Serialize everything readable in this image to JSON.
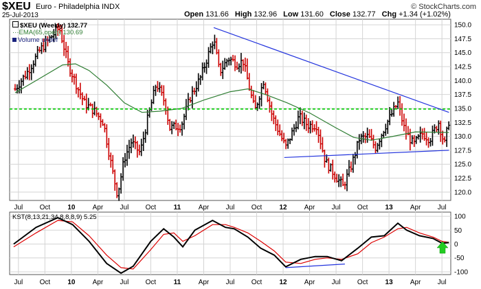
{
  "header": {
    "symbol": "$XEU",
    "name": "Euro - Philadelphia INDX",
    "date": "25-Jul-2013",
    "brand": "© StockCharts.com",
    "open_label": "Open",
    "open": "131.66",
    "high_label": "High",
    "high": "132.96",
    "low_label": "Low",
    "low": "131.60",
    "close_label": "Close",
    "close": "132.77",
    "chg_label": "Chg",
    "chg": "+1.34 (+1.02%)"
  },
  "legend": {
    "price": "$XEU (Weekly) 132.77",
    "ema": "EMA(65,open) 130.69",
    "volume": "Volume undef",
    "kst": "KST(8,13,21,34,8,8,8,9) 5.25"
  },
  "colors": {
    "bar_up": "#000000",
    "bar_down": "#cc0000",
    "ema": "#2e7d32",
    "support_line": "#00cc00",
    "trend_line": "#2233dd",
    "kst_line": "#000000",
    "kst_signal": "#dd0000",
    "arrow": "#22cc22",
    "grid": "#d4d4d4"
  },
  "chart_data": [
    {
      "type": "ohlc",
      "title": "$XEU (Weekly) 132.77",
      "x_ticks": [
        "Jul",
        "Oct",
        "10",
        "Apr",
        "Jul",
        "Oct",
        "11",
        "Apr",
        "Jul",
        "Oct",
        "12",
        "Apr",
        "Jul",
        "Oct",
        "13",
        "Apr",
        "Jul"
      ],
      "x_range": [
        "2009-06",
        "2013-08"
      ],
      "ylim": [
        118.5,
        151
      ],
      "y_ticks": [
        120.0,
        122.5,
        125.0,
        127.5,
        130.0,
        132.5,
        135.0,
        137.5,
        140.0,
        142.5,
        145.0,
        147.5,
        150.0
      ],
      "close_path": [
        [
          "2009-06-20",
          138.5
        ],
        [
          "2009-08-01",
          141.5
        ],
        [
          "2009-09-15",
          145.5
        ],
        [
          "2009-11-20",
          149.5
        ],
        [
          "2009-12-20",
          143.0
        ],
        [
          "2010-01-20",
          139.0
        ],
        [
          "2010-02-15",
          136.0
        ],
        [
          "2010-03-20",
          134.5
        ],
        [
          "2010-04-20",
          132.5
        ],
        [
          "2010-05-20",
          124.0
        ],
        [
          "2010-06-08",
          119.5
        ],
        [
          "2010-07-01",
          126.0
        ],
        [
          "2010-07-25",
          129.0
        ],
        [
          "2010-08-25",
          127.0
        ],
        [
          "2010-09-20",
          133.0
        ],
        [
          "2010-10-20",
          139.5
        ],
        [
          "2010-11-20",
          136.0
        ],
        [
          "2010-12-05",
          131.5
        ],
        [
          "2011-01-15",
          132.0
        ],
        [
          "2011-02-15",
          137.0
        ],
        [
          "2011-03-20",
          140.5
        ],
        [
          "2011-05-05",
          147.5
        ],
        [
          "2011-05-25",
          141.5
        ],
        [
          "2011-06-25",
          144.0
        ],
        [
          "2011-07-25",
          143.0
        ],
        [
          "2011-08-15",
          143.5
        ],
        [
          "2011-09-25",
          134.5
        ],
        [
          "2011-10-25",
          140.0
        ],
        [
          "2011-11-25",
          133.5
        ],
        [
          "2012-01-10",
          128.0
        ],
        [
          "2012-02-25",
          133.5
        ],
        [
          "2012-03-25",
          132.0
        ],
        [
          "2012-04-25",
          132.0
        ],
        [
          "2012-05-25",
          125.5
        ],
        [
          "2012-07-25",
          121.0
        ],
        [
          "2012-08-25",
          125.0
        ],
        [
          "2012-09-20",
          129.5
        ],
        [
          "2012-10-20",
          130.0
        ],
        [
          "2012-11-15",
          128.0
        ],
        [
          "2012-12-20",
          132.0
        ],
        [
          "2013-02-01",
          136.0
        ],
        [
          "2013-02-25",
          131.0
        ],
        [
          "2013-03-25",
          128.5
        ],
        [
          "2013-04-25",
          130.5
        ],
        [
          "2013-05-20",
          129.5
        ],
        [
          "2013-06-20",
          132.5
        ],
        [
          "2013-07-10",
          128.5
        ],
        [
          "2013-07-25",
          132.77
        ]
      ],
      "ema_path": [
        [
          "2009-06-20",
          137.8
        ],
        [
          "2009-09-01",
          140.0
        ],
        [
          "2009-12-01",
          142.8
        ],
        [
          "2010-01-15",
          143.0
        ],
        [
          "2010-03-01",
          141.8
        ],
        [
          "2010-05-01",
          139.2
        ],
        [
          "2010-07-01",
          136.0
        ],
        [
          "2010-09-01",
          134.3
        ],
        [
          "2010-11-01",
          134.5
        ],
        [
          "2011-01-15",
          135.0
        ],
        [
          "2011-04-01",
          136.5
        ],
        [
          "2011-07-01",
          138.0
        ],
        [
          "2011-09-01",
          138.5
        ],
        [
          "2011-11-01",
          137.5
        ],
        [
          "2012-01-15",
          136.0
        ],
        [
          "2012-04-01",
          134.2
        ],
        [
          "2012-07-01",
          131.5
        ],
        [
          "2012-09-01",
          129.8
        ],
        [
          "2012-11-01",
          129.3
        ],
        [
          "2013-01-15",
          130.0
        ],
        [
          "2013-04-01",
          130.8
        ],
        [
          "2013-07-25",
          130.69
        ]
      ],
      "horizontal_line": 134.9,
      "trend_lines": [
        [
          [
            "2011-05-05",
            149.5
          ],
          [
            "2013-07-25",
            134.3
          ]
        ],
        [
          [
            "2012-01-05",
            126.2
          ],
          [
            "2013-07-25",
            127.5
          ]
        ]
      ]
    },
    {
      "type": "line",
      "title": "KST(8,13,21,34,8,8,8,9) 5.25",
      "ylim": [
        -110,
        115
      ],
      "y_ticks": [
        -100,
        -50,
        0,
        50,
        100
      ],
      "x_ticks": [
        "Jul",
        "Oct",
        "10",
        "Apr",
        "Jul",
        "Oct",
        "11",
        "Apr",
        "Jul",
        "Oct",
        "12",
        "Apr",
        "Jul",
        "Oct",
        "13",
        "Apr",
        "Jul"
      ],
      "series": [
        {
          "name": "KST",
          "values": [
            [
              "2009-06-15",
              0
            ],
            [
              "2009-09-01",
              60
            ],
            [
              "2009-11-15",
              95
            ],
            [
              "2010-01-05",
              70
            ],
            [
              "2010-03-01",
              10
            ],
            [
              "2010-05-01",
              -70
            ],
            [
              "2010-06-20",
              -105
            ],
            [
              "2010-08-01",
              -80
            ],
            [
              "2010-10-01",
              10
            ],
            [
              "2010-11-15",
              55
            ],
            [
              "2010-12-20",
              25
            ],
            [
              "2011-01-20",
              -10
            ],
            [
              "2011-03-01",
              50
            ],
            [
              "2011-05-01",
              85
            ],
            [
              "2011-06-15",
              60
            ],
            [
              "2011-07-15",
              55
            ],
            [
              "2011-09-01",
              25
            ],
            [
              "2011-10-15",
              -15
            ],
            [
              "2011-12-01",
              -40
            ],
            [
              "2012-01-10",
              -82
            ],
            [
              "2012-03-01",
              -55
            ],
            [
              "2012-04-20",
              -45
            ],
            [
              "2012-06-01",
              -45
            ],
            [
              "2012-07-20",
              -60
            ],
            [
              "2012-09-15",
              -15
            ],
            [
              "2012-11-01",
              25
            ],
            [
              "2012-12-15",
              30
            ],
            [
              "2013-02-01",
              75
            ],
            [
              "2013-03-01",
              50
            ],
            [
              "2013-04-15",
              30
            ],
            [
              "2013-06-01",
              20
            ],
            [
              "2013-07-01",
              3
            ],
            [
              "2013-07-25",
              5.25
            ]
          ]
        },
        {
          "name": "Signal",
          "values": [
            [
              "2009-06-15",
              -10
            ],
            [
              "2009-09-01",
              40
            ],
            [
              "2009-11-15",
              85
            ],
            [
              "2010-01-05",
              80
            ],
            [
              "2010-03-01",
              30
            ],
            [
              "2010-05-01",
              -40
            ],
            [
              "2010-06-20",
              -85
            ],
            [
              "2010-08-01",
              -90
            ],
            [
              "2010-10-01",
              -20
            ],
            [
              "2010-11-15",
              35
            ],
            [
              "2010-12-20",
              40
            ],
            [
              "2011-01-20",
              10
            ],
            [
              "2011-03-01",
              30
            ],
            [
              "2011-05-01",
              70
            ],
            [
              "2011-06-15",
              70
            ],
            [
              "2011-07-15",
              60
            ],
            [
              "2011-09-01",
              40
            ],
            [
              "2011-10-15",
              10
            ],
            [
              "2011-12-01",
              -25
            ],
            [
              "2012-01-10",
              -65
            ],
            [
              "2012-03-01",
              -70
            ],
            [
              "2012-04-20",
              -55
            ],
            [
              "2012-06-01",
              -50
            ],
            [
              "2012-07-20",
              -55
            ],
            [
              "2012-09-15",
              -35
            ],
            [
              "2012-11-01",
              5
            ],
            [
              "2012-12-15",
              25
            ],
            [
              "2013-02-01",
              55
            ],
            [
              "2013-03-01",
              60
            ],
            [
              "2013-04-15",
              40
            ],
            [
              "2013-06-01",
              25
            ],
            [
              "2013-07-01",
              10
            ],
            [
              "2013-07-25",
              6
            ]
          ]
        }
      ],
      "trend_line": [
        [
          "2012-01-10",
          -85
        ],
        [
          "2012-08-01",
          -72
        ]
      ],
      "annotation": "up-arrow"
    }
  ]
}
